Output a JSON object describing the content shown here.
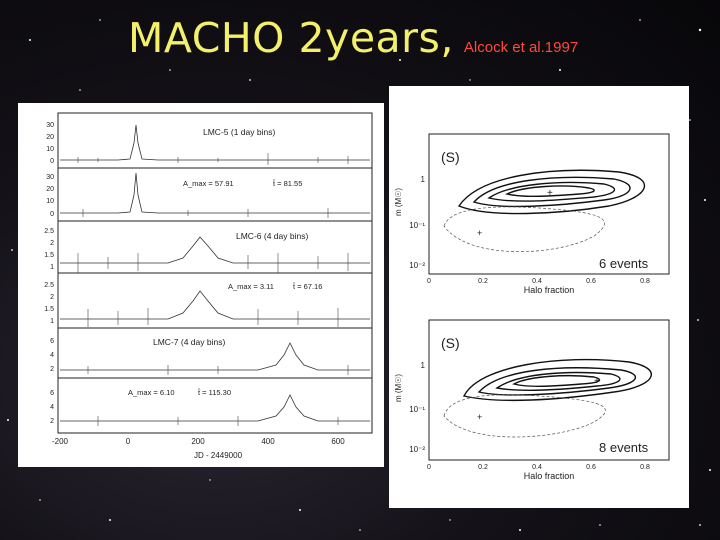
{
  "title": {
    "main": "MACHO 2years,",
    "citation": "Alcock et al.1997"
  },
  "colors": {
    "title": "#f4f06a",
    "citation": "#ff4a3a",
    "panel": "#ffffff"
  },
  "light_curves": {
    "x_ticks": [
      "-200",
      "0",
      "200",
      "400",
      "600"
    ],
    "x_label": "JD - 2449000",
    "events": [
      {
        "label": "LMC-5 (1 day bins)",
        "params": {
          "a": "A_max = 57.91",
          "t": "t̂ = 81.55"
        },
        "blue_ticks": [
          "30",
          "20",
          "10",
          "0"
        ],
        "red_ticks": [
          "30",
          "20",
          "10",
          "0"
        ]
      },
      {
        "label": "LMC-6 (4 day bins)",
        "params": {
          "a": "A_max = 3.11",
          "t": "t̂ = 67.16"
        },
        "blue_ticks": [
          "2.5",
          "2",
          "1.5",
          "1"
        ],
        "red_ticks": [
          "2.5",
          "2",
          "1.5",
          "1"
        ]
      },
      {
        "label": "LMC-7 (4 day bins)",
        "params": {
          "a": "A_max = 6.10",
          "t": "t̂ = 115.30"
        },
        "blue_ticks": [
          "6",
          "4",
          "2"
        ],
        "red_ticks": [
          "6",
          "4",
          "2"
        ]
      }
    ]
  },
  "likelihood_plots": [
    {
      "model": "(S)",
      "events": "6 events",
      "x_label": "Halo fraction",
      "y_label": "m (M☉)",
      "x_ticks": [
        "0",
        "0.2",
        "0.4",
        "0.6",
        "0.8"
      ],
      "y_ticks": [
        "1",
        "10⁻¹",
        "10⁻²"
      ]
    },
    {
      "model": "(S)",
      "events": "8 events",
      "x_label": "Halo fraction",
      "y_label": "m (M☉)",
      "x_ticks": [
        "0",
        "0.2",
        "0.4",
        "0.6",
        "0.8"
      ],
      "y_ticks": [
        "1",
        "10⁻¹",
        "10⁻²"
      ]
    }
  ]
}
